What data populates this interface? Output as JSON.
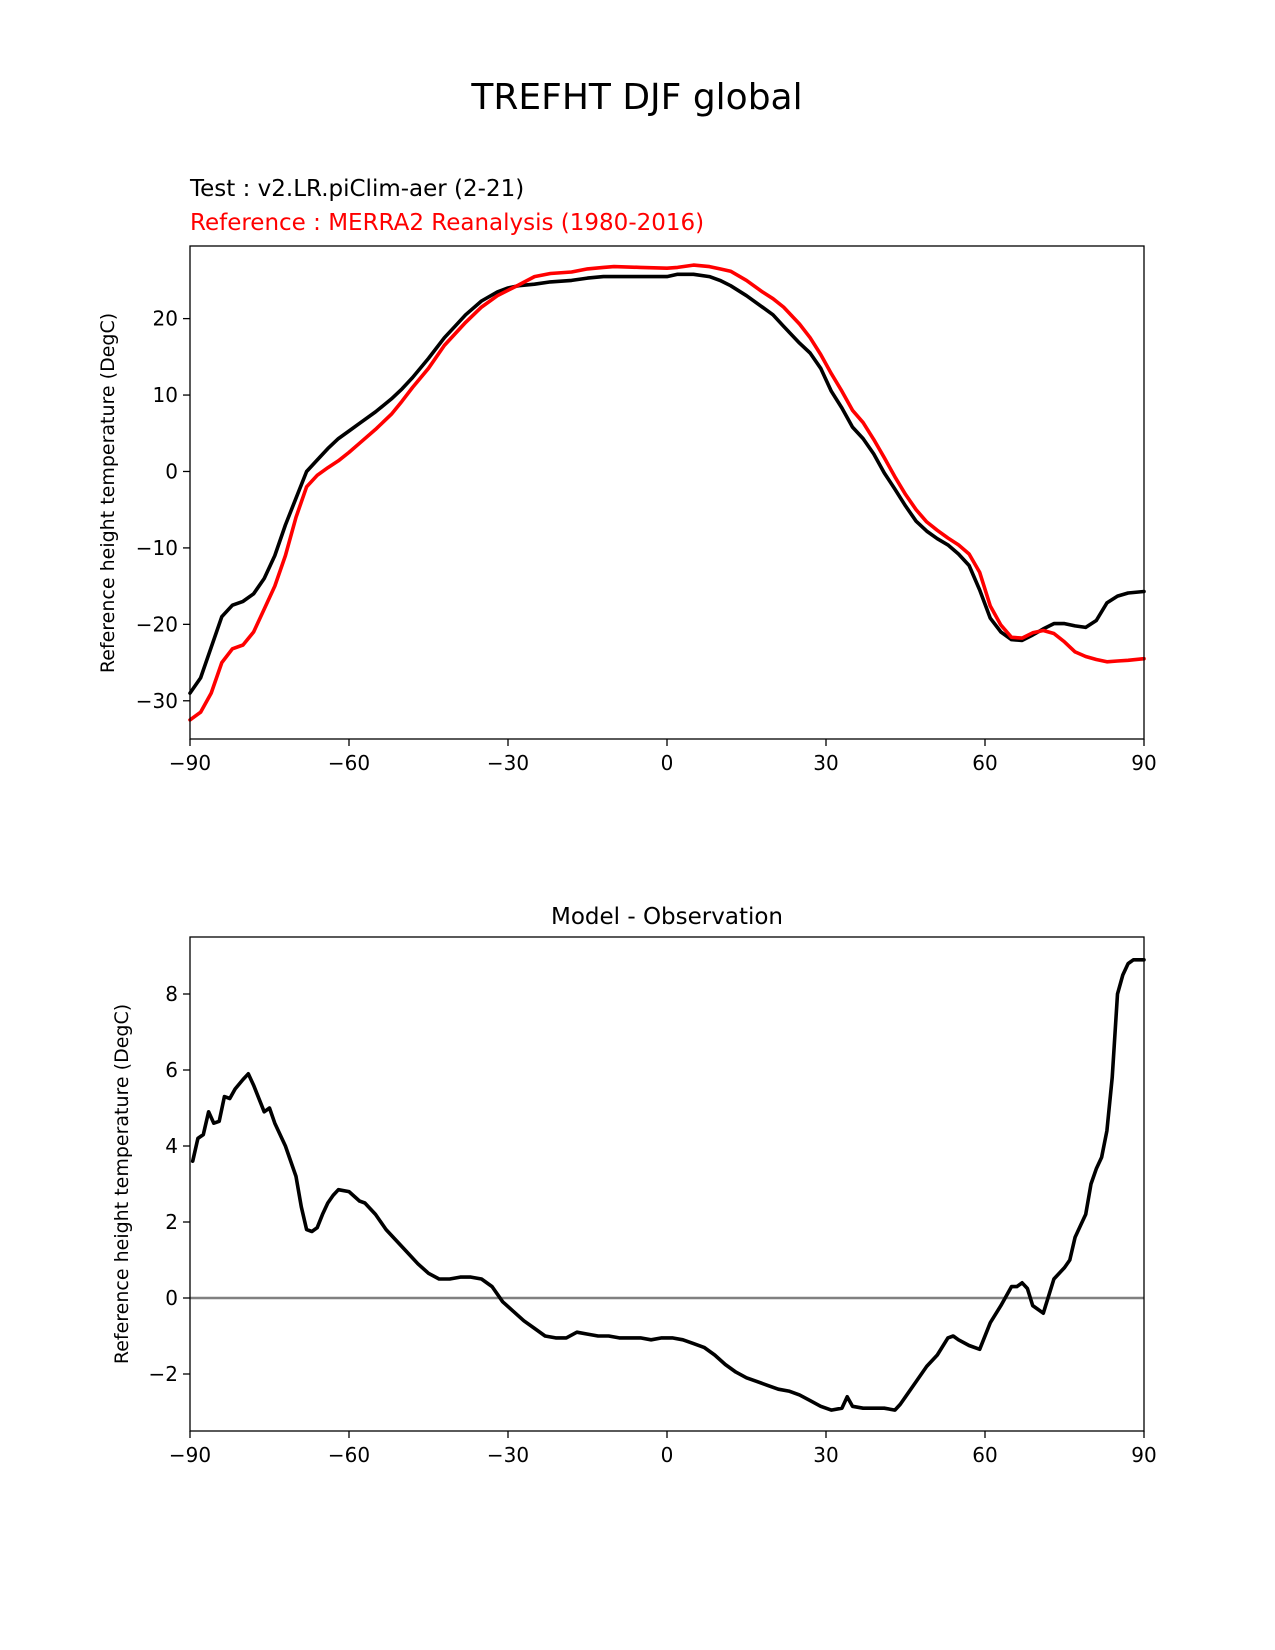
{
  "figure": {
    "title": "TREFHT DJF global"
  },
  "chart_data": [
    {
      "type": "line",
      "test_label": "Test : v2.LR.piClim-aer (2-21)",
      "reference_label": "Reference : MERRA2 Reanalysis (1980-2016)",
      "xlabel": "",
      "ylabel": "Reference height temperature (DegC)",
      "xlim": [
        -90,
        90
      ],
      "ylim": [
        -35,
        29.5
      ],
      "xticks": [
        -90,
        -60,
        -30,
        0,
        30,
        60,
        90
      ],
      "xtick_labels": [
        "−90",
        "−60",
        "−30",
        "0",
        "30",
        "60",
        "90"
      ],
      "yticks": [
        -30,
        -20,
        -10,
        0,
        10,
        20
      ],
      "ytick_labels": [
        "−30",
        "−20",
        "−10",
        "0",
        "10",
        "20"
      ],
      "grid": false,
      "series": [
        {
          "color": "#000000",
          "x": [
            -90,
            -88,
            -86,
            -84,
            -82,
            -80,
            -78,
            -76,
            -74,
            -72,
            -70,
            -68,
            -66,
            -64,
            -62,
            -60,
            -58,
            -55,
            -52,
            -50,
            -48,
            -45,
            -42,
            -40,
            -38,
            -35,
            -32,
            -30,
            -28,
            -25,
            -22,
            -18,
            -15,
            -12,
            -10,
            -5,
            0,
            2,
            5,
            8,
            10,
            12,
            15,
            18,
            20,
            22,
            25,
            27,
            29,
            31,
            33,
            35,
            37,
            39,
            41,
            43,
            45,
            47,
            49,
            51,
            53,
            55,
            57,
            59,
            61,
            63,
            65,
            67,
            69,
            71,
            73,
            75,
            77,
            79,
            81,
            83,
            85,
            87,
            90
          ],
          "y": [
            -29,
            -27,
            -23,
            -19,
            -17.5,
            -17,
            -16,
            -14,
            -11,
            -7,
            -3.5,
            0,
            1.5,
            3,
            4.3,
            5.3,
            6.3,
            7.8,
            9.5,
            10.8,
            12.3,
            14.8,
            17.5,
            19,
            20.5,
            22.3,
            23.5,
            24,
            24.3,
            24.5,
            24.8,
            25,
            25.3,
            25.5,
            25.5,
            25.5,
            25.5,
            25.8,
            25.8,
            25.5,
            25,
            24.3,
            23,
            21.5,
            20.5,
            19,
            16.8,
            15.5,
            13.5,
            10.5,
            8.3,
            5.8,
            4.3,
            2.3,
            -0.2,
            -2.3,
            -4.5,
            -6.5,
            -7.8,
            -8.8,
            -9.6,
            -10.8,
            -12.3,
            -15.5,
            -19.2,
            -21,
            -22,
            -22.1,
            -21.4,
            -20.6,
            -19.9,
            -19.9,
            -20.2,
            -20.4,
            -19.5,
            -17.2,
            -16.3,
            -15.9,
            -15.7
          ]
        },
        {
          "color": "#ff0000",
          "x": [
            -90,
            -88,
            -86,
            -84,
            -82,
            -80,
            -78,
            -76,
            -74,
            -72,
            -70,
            -68,
            -66,
            -64,
            -62,
            -60,
            -58,
            -55,
            -52,
            -50,
            -48,
            -45,
            -42,
            -40,
            -38,
            -35,
            -32,
            -30,
            -28,
            -25,
            -22,
            -18,
            -15,
            -12,
            -10,
            -5,
            0,
            2,
            5,
            8,
            10,
            12,
            15,
            18,
            20,
            22,
            25,
            27,
            29,
            31,
            33,
            35,
            37,
            39,
            41,
            43,
            45,
            47,
            49,
            51,
            53,
            55,
            57,
            59,
            61,
            63,
            65,
            67,
            69,
            71,
            73,
            75,
            77,
            79,
            81,
            83,
            85,
            87,
            90
          ],
          "y": [
            -32.5,
            -31.5,
            -29,
            -25,
            -23.2,
            -22.7,
            -21,
            -18,
            -15,
            -11,
            -6,
            -2,
            -0.5,
            0.5,
            1.4,
            2.5,
            3.7,
            5.5,
            7.5,
            9.2,
            11,
            13.5,
            16.5,
            18,
            19.5,
            21.5,
            23,
            23.7,
            24.4,
            25.5,
            25.9,
            26.1,
            26.5,
            26.7,
            26.8,
            26.7,
            26.6,
            26.7,
            27,
            26.8,
            26.5,
            26.2,
            25,
            23.5,
            22.6,
            21.5,
            19.3,
            17.5,
            15.3,
            12.8,
            10.5,
            8,
            6.4,
            4.2,
            1.8,
            -0.7,
            -3,
            -5,
            -6.6,
            -7.7,
            -8.7,
            -9.6,
            -10.8,
            -13.2,
            -17.6,
            -20.1,
            -21.7,
            -21.8,
            -21.1,
            -20.8,
            -21.2,
            -22.3,
            -23.6,
            -24.2,
            -24.6,
            -24.9,
            -24.8,
            -24.7,
            -24.5
          ]
        }
      ]
    },
    {
      "type": "line",
      "title": "Model - Observation",
      "xlabel": "",
      "ylabel": "Reference height temperature (DegC)",
      "xlim": [
        -90,
        90
      ],
      "ylim": [
        -3.5,
        9.5
      ],
      "xticks": [
        -90,
        -60,
        -30,
        0,
        30,
        60,
        90
      ],
      "xtick_labels": [
        "−90",
        "−60",
        "−30",
        "0",
        "30",
        "60",
        "90"
      ],
      "yticks": [
        -2,
        0,
        2,
        4,
        6,
        8
      ],
      "ytick_labels": [
        "−2",
        "0",
        "2",
        "4",
        "6",
        "8"
      ],
      "grid": false,
      "zero_line_color": "#808080",
      "series": [
        {
          "color": "#000000",
          "x": [
            -89.5,
            -88.5,
            -87.5,
            -86.5,
            -85.5,
            -84.5,
            -83.5,
            -82.5,
            -81.5,
            -80,
            -79,
            -78,
            -76,
            -75,
            -74,
            -72,
            -70,
            -69,
            -68,
            -67,
            -66,
            -65,
            -64,
            -63,
            -62,
            -60,
            -58,
            -57,
            -55,
            -53,
            -51,
            -49,
            -47,
            -45,
            -43,
            -41,
            -39,
            -37,
            -35,
            -33,
            -31,
            -29,
            -27,
            -25,
            -23,
            -21,
            -19,
            -17,
            -15,
            -13,
            -11,
            -9,
            -7,
            -5,
            -3,
            -1,
            1,
            3,
            5,
            7,
            9,
            11,
            13,
            15,
            17,
            19,
            21,
            23,
            25,
            27,
            29,
            31,
            33,
            34,
            35,
            37,
            39,
            41,
            43,
            44,
            45,
            47,
            49,
            51,
            53,
            54,
            55,
            57,
            59,
            61,
            63,
            64,
            65,
            66,
            67,
            68,
            69,
            70,
            71,
            73,
            75,
            76,
            77,
            78,
            79,
            80,
            81,
            82,
            83,
            84,
            85,
            86,
            87,
            88,
            90
          ],
          "y": [
            3.6,
            4.2,
            4.3,
            4.9,
            4.6,
            4.65,
            5.3,
            5.25,
            5.5,
            5.75,
            5.9,
            5.6,
            4.9,
            5,
            4.6,
            4,
            3.2,
            2.4,
            1.8,
            1.75,
            1.85,
            2.2,
            2.5,
            2.7,
            2.85,
            2.8,
            2.55,
            2.5,
            2.2,
            1.8,
            1.5,
            1.2,
            0.9,
            0.65,
            0.5,
            0.5,
            0.55,
            0.55,
            0.5,
            0.3,
            -0.1,
            -0.35,
            -0.6,
            -0.8,
            -1,
            -1.05,
            -1.05,
            -0.9,
            -0.95,
            -1,
            -1,
            -1.05,
            -1.05,
            -1.05,
            -1.1,
            -1.05,
            -1.05,
            -1.1,
            -1.2,
            -1.3,
            -1.5,
            -1.75,
            -1.95,
            -2.1,
            -2.2,
            -2.3,
            -2.4,
            -2.45,
            -2.55,
            -2.7,
            -2.85,
            -2.95,
            -2.9,
            -2.6,
            -2.85,
            -2.9,
            -2.9,
            -2.9,
            -2.95,
            -2.8,
            -2.6,
            -2.2,
            -1.8,
            -1.5,
            -1.05,
            -1,
            -1.1,
            -1.25,
            -1.35,
            -0.65,
            -0.2,
            0.05,
            0.3,
            0.3,
            0.4,
            0.25,
            -0.2,
            -0.3,
            -0.4,
            0.5,
            0.8,
            1,
            1.6,
            1.9,
            2.2,
            3,
            3.4,
            3.7,
            4.4,
            5.8,
            8,
            8.5,
            8.8,
            8.9,
            8.9
          ]
        }
      ]
    }
  ]
}
